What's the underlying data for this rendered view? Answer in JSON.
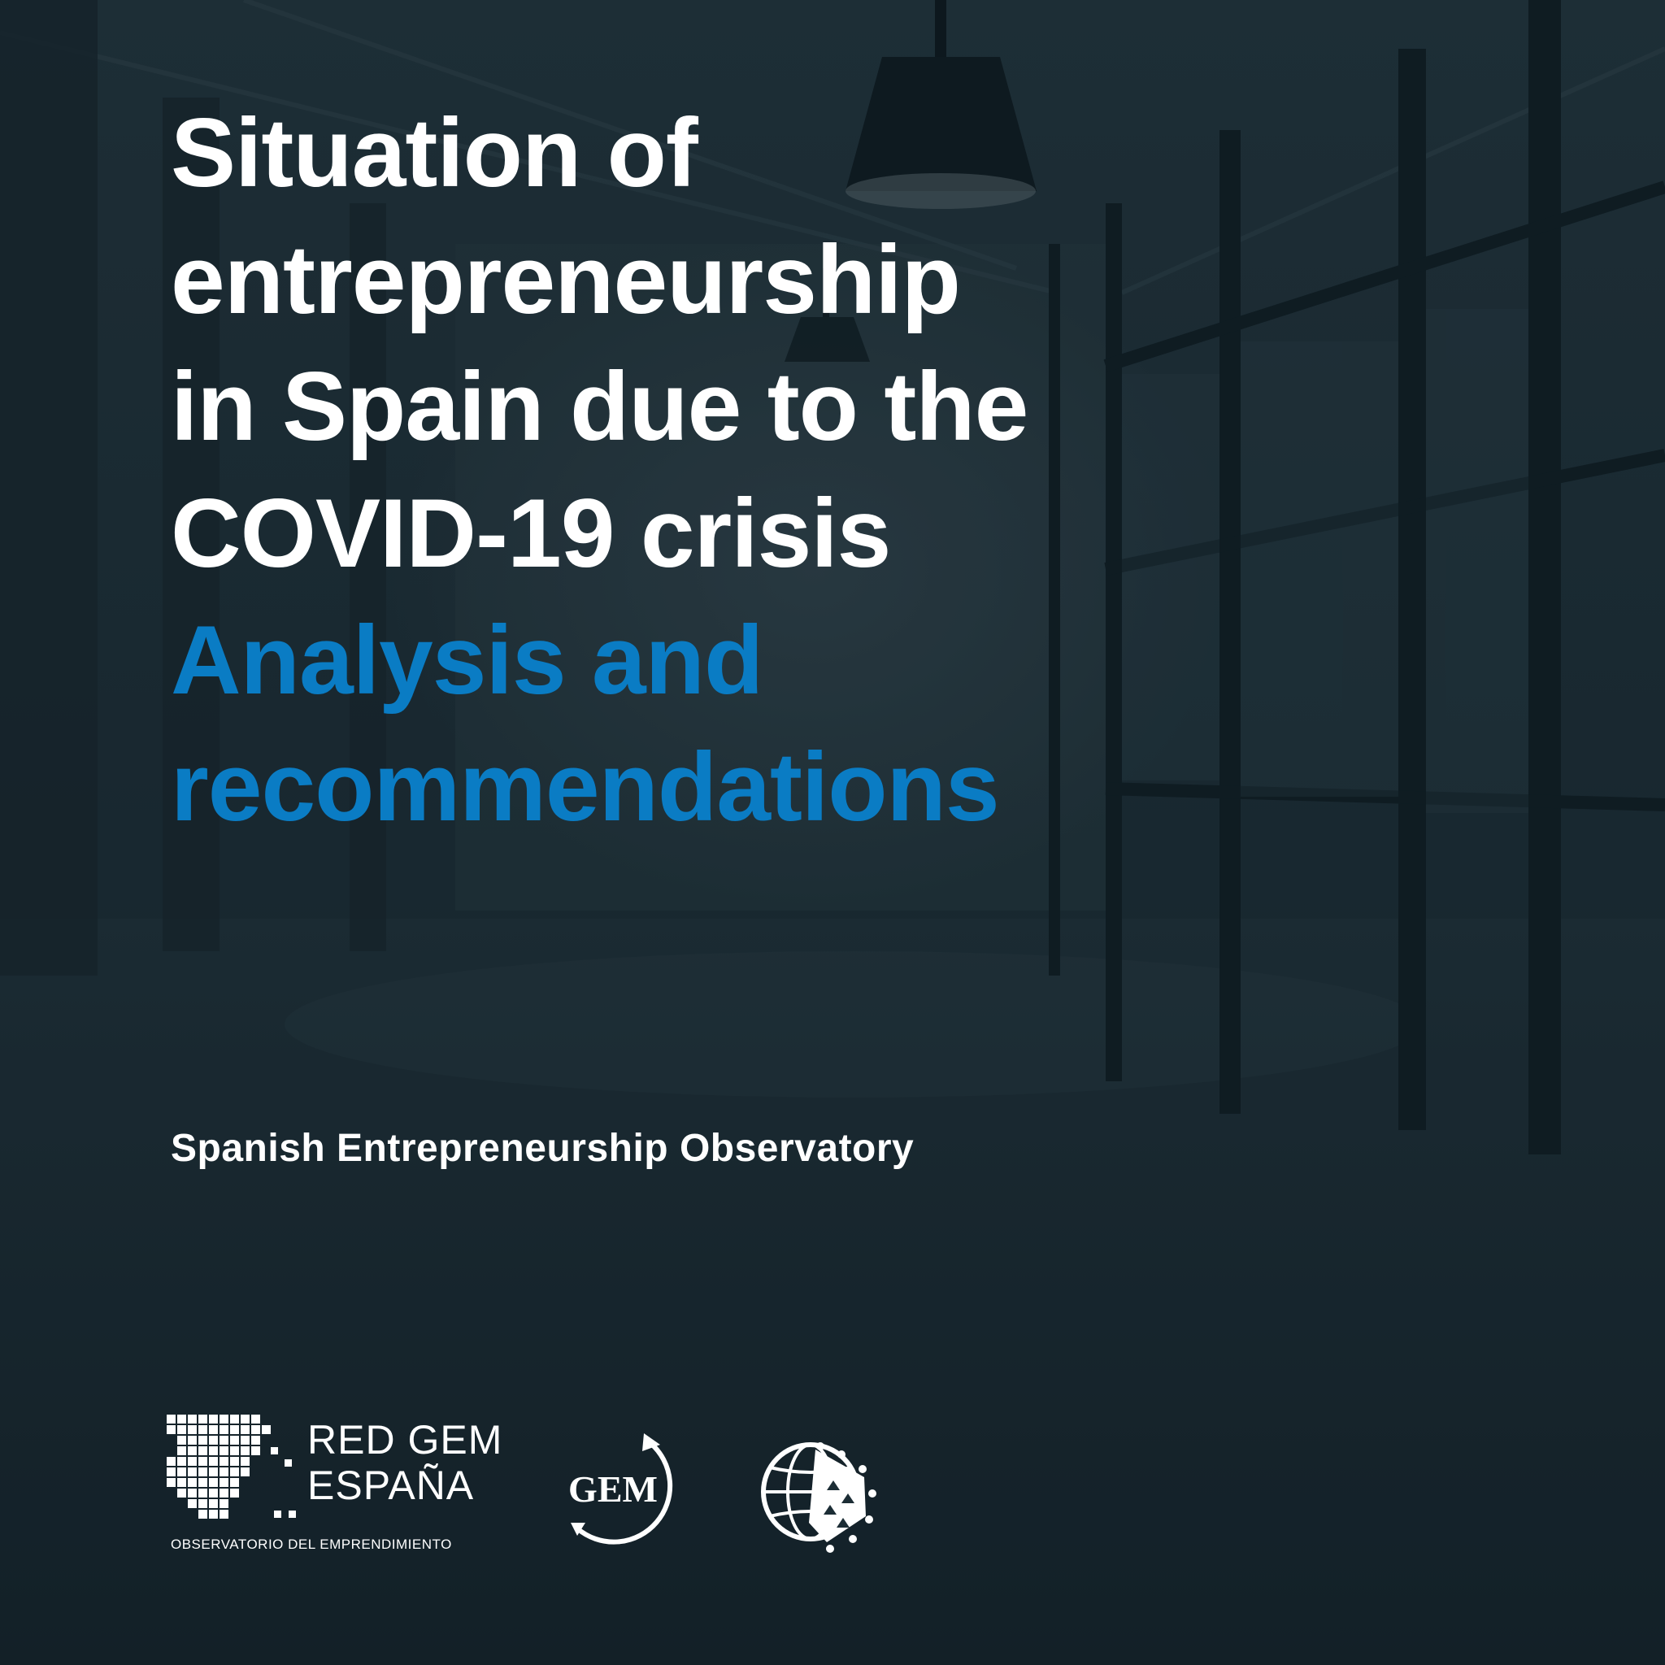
{
  "cover": {
    "title_lines": [
      "Situation of",
      "entrepreneurship",
      "in Spain due to the",
      "COVID-19 crisis"
    ],
    "subtitle_lines": [
      "Analysis and",
      "recommendations"
    ],
    "publisher": "Spanish Entrepreneurship Observatory"
  },
  "logos": {
    "red_gem": {
      "line1": "RED GEM",
      "line2": "ESPAÑA",
      "tagline": "OBSERVATORIO DEL EMPRENDIMIENTO",
      "icon": "spain-pixel-map-icon"
    },
    "gem": {
      "text": "GEM",
      "icon": "gem-circular-arrow-icon"
    },
    "globe": {
      "icon": "globe-emblem-icon"
    }
  },
  "colors": {
    "background": "#1c2d35",
    "title": "#ffffff",
    "subtitle": "#0a7cc4"
  }
}
